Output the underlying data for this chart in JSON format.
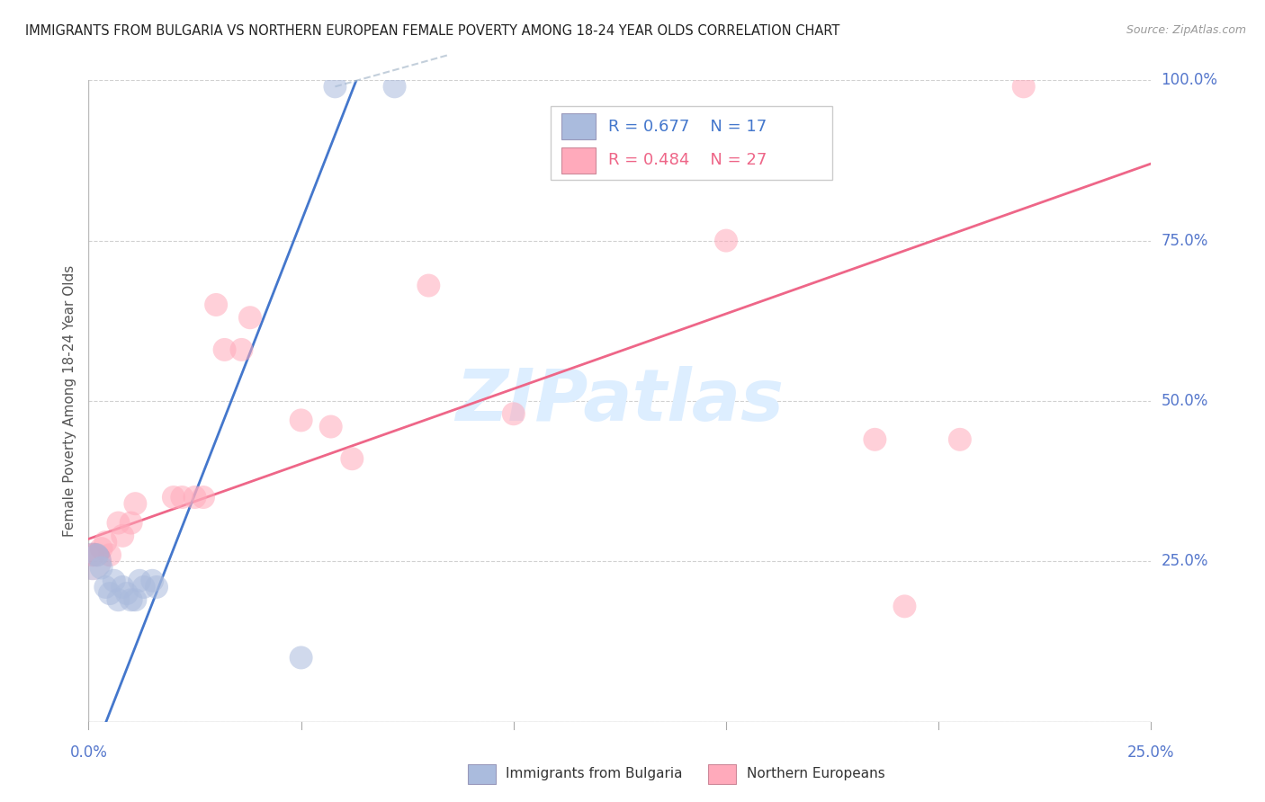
{
  "title": "IMMIGRANTS FROM BULGARIA VS NORTHERN EUROPEAN FEMALE POVERTY AMONG 18-24 YEAR OLDS CORRELATION CHART",
  "source": "Source: ZipAtlas.com",
  "ylabel": "Female Poverty Among 18-24 Year Olds",
  "xlim": [
    0.0,
    0.25
  ],
  "ylim": [
    0.0,
    1.0
  ],
  "xticks": [
    0.0,
    0.05,
    0.1,
    0.15,
    0.2,
    0.25
  ],
  "xtick_labels": [
    "0.0%",
    "",
    "",
    "",
    "",
    "25.0%"
  ],
  "yticks": [
    0.0,
    0.25,
    0.5,
    0.75,
    1.0
  ],
  "ytick_labels": [
    "",
    "25.0%",
    "50.0%",
    "75.0%",
    "100.0%"
  ],
  "blue_label": "Immigrants from Bulgaria",
  "pink_label": "Northern Europeans",
  "blue_R": 0.677,
  "blue_N": 17,
  "pink_R": 0.484,
  "pink_N": 27,
  "blue_color": "#AABBDD",
  "pink_color": "#FFAABB",
  "blue_line_color": "#4477CC",
  "pink_line_color": "#EE6688",
  "axis_label_color": "#5577CC",
  "grid_color": "#CCCCCC",
  "title_color": "#222222",
  "watermark_color": "#DDEEFF",
  "blue_points": [
    [
      0.002,
      0.26
    ],
    [
      0.003,
      0.24
    ],
    [
      0.004,
      0.21
    ],
    [
      0.005,
      0.2
    ],
    [
      0.006,
      0.22
    ],
    [
      0.007,
      0.19
    ],
    [
      0.008,
      0.21
    ],
    [
      0.009,
      0.2
    ],
    [
      0.01,
      0.19
    ],
    [
      0.011,
      0.19
    ],
    [
      0.012,
      0.22
    ],
    [
      0.013,
      0.21
    ],
    [
      0.015,
      0.22
    ],
    [
      0.016,
      0.21
    ],
    [
      0.05,
      0.1
    ],
    [
      0.058,
      0.99
    ],
    [
      0.072,
      0.99
    ]
  ],
  "pink_points": [
    [
      0.001,
      0.26
    ],
    [
      0.002,
      0.26
    ],
    [
      0.003,
      0.27
    ],
    [
      0.004,
      0.28
    ],
    [
      0.005,
      0.26
    ],
    [
      0.007,
      0.31
    ],
    [
      0.008,
      0.29
    ],
    [
      0.01,
      0.31
    ],
    [
      0.011,
      0.34
    ],
    [
      0.02,
      0.35
    ],
    [
      0.022,
      0.35
    ],
    [
      0.025,
      0.35
    ],
    [
      0.027,
      0.35
    ],
    [
      0.03,
      0.65
    ],
    [
      0.032,
      0.58
    ],
    [
      0.036,
      0.58
    ],
    [
      0.038,
      0.63
    ],
    [
      0.05,
      0.47
    ],
    [
      0.057,
      0.46
    ],
    [
      0.062,
      0.41
    ],
    [
      0.08,
      0.68
    ],
    [
      0.1,
      0.48
    ],
    [
      0.185,
      0.44
    ],
    [
      0.192,
      0.18
    ],
    [
      0.205,
      0.44
    ],
    [
      0.22,
      0.99
    ],
    [
      0.15,
      0.75
    ]
  ],
  "blue_line_solid": {
    "x0": 0.025,
    "y0": 0.3,
    "x1": 0.072,
    "y1": 1.0
  },
  "blue_line_dashed": {
    "x0": 0.025,
    "y0": 0.3,
    "x1": 0.072,
    "y1": 1.0
  },
  "pink_line": {
    "x0": 0.0,
    "y0": 0.285,
    "x1": 0.25,
    "y1": 0.87
  },
  "figsize": [
    14.06,
    8.92
  ],
  "dpi": 100
}
